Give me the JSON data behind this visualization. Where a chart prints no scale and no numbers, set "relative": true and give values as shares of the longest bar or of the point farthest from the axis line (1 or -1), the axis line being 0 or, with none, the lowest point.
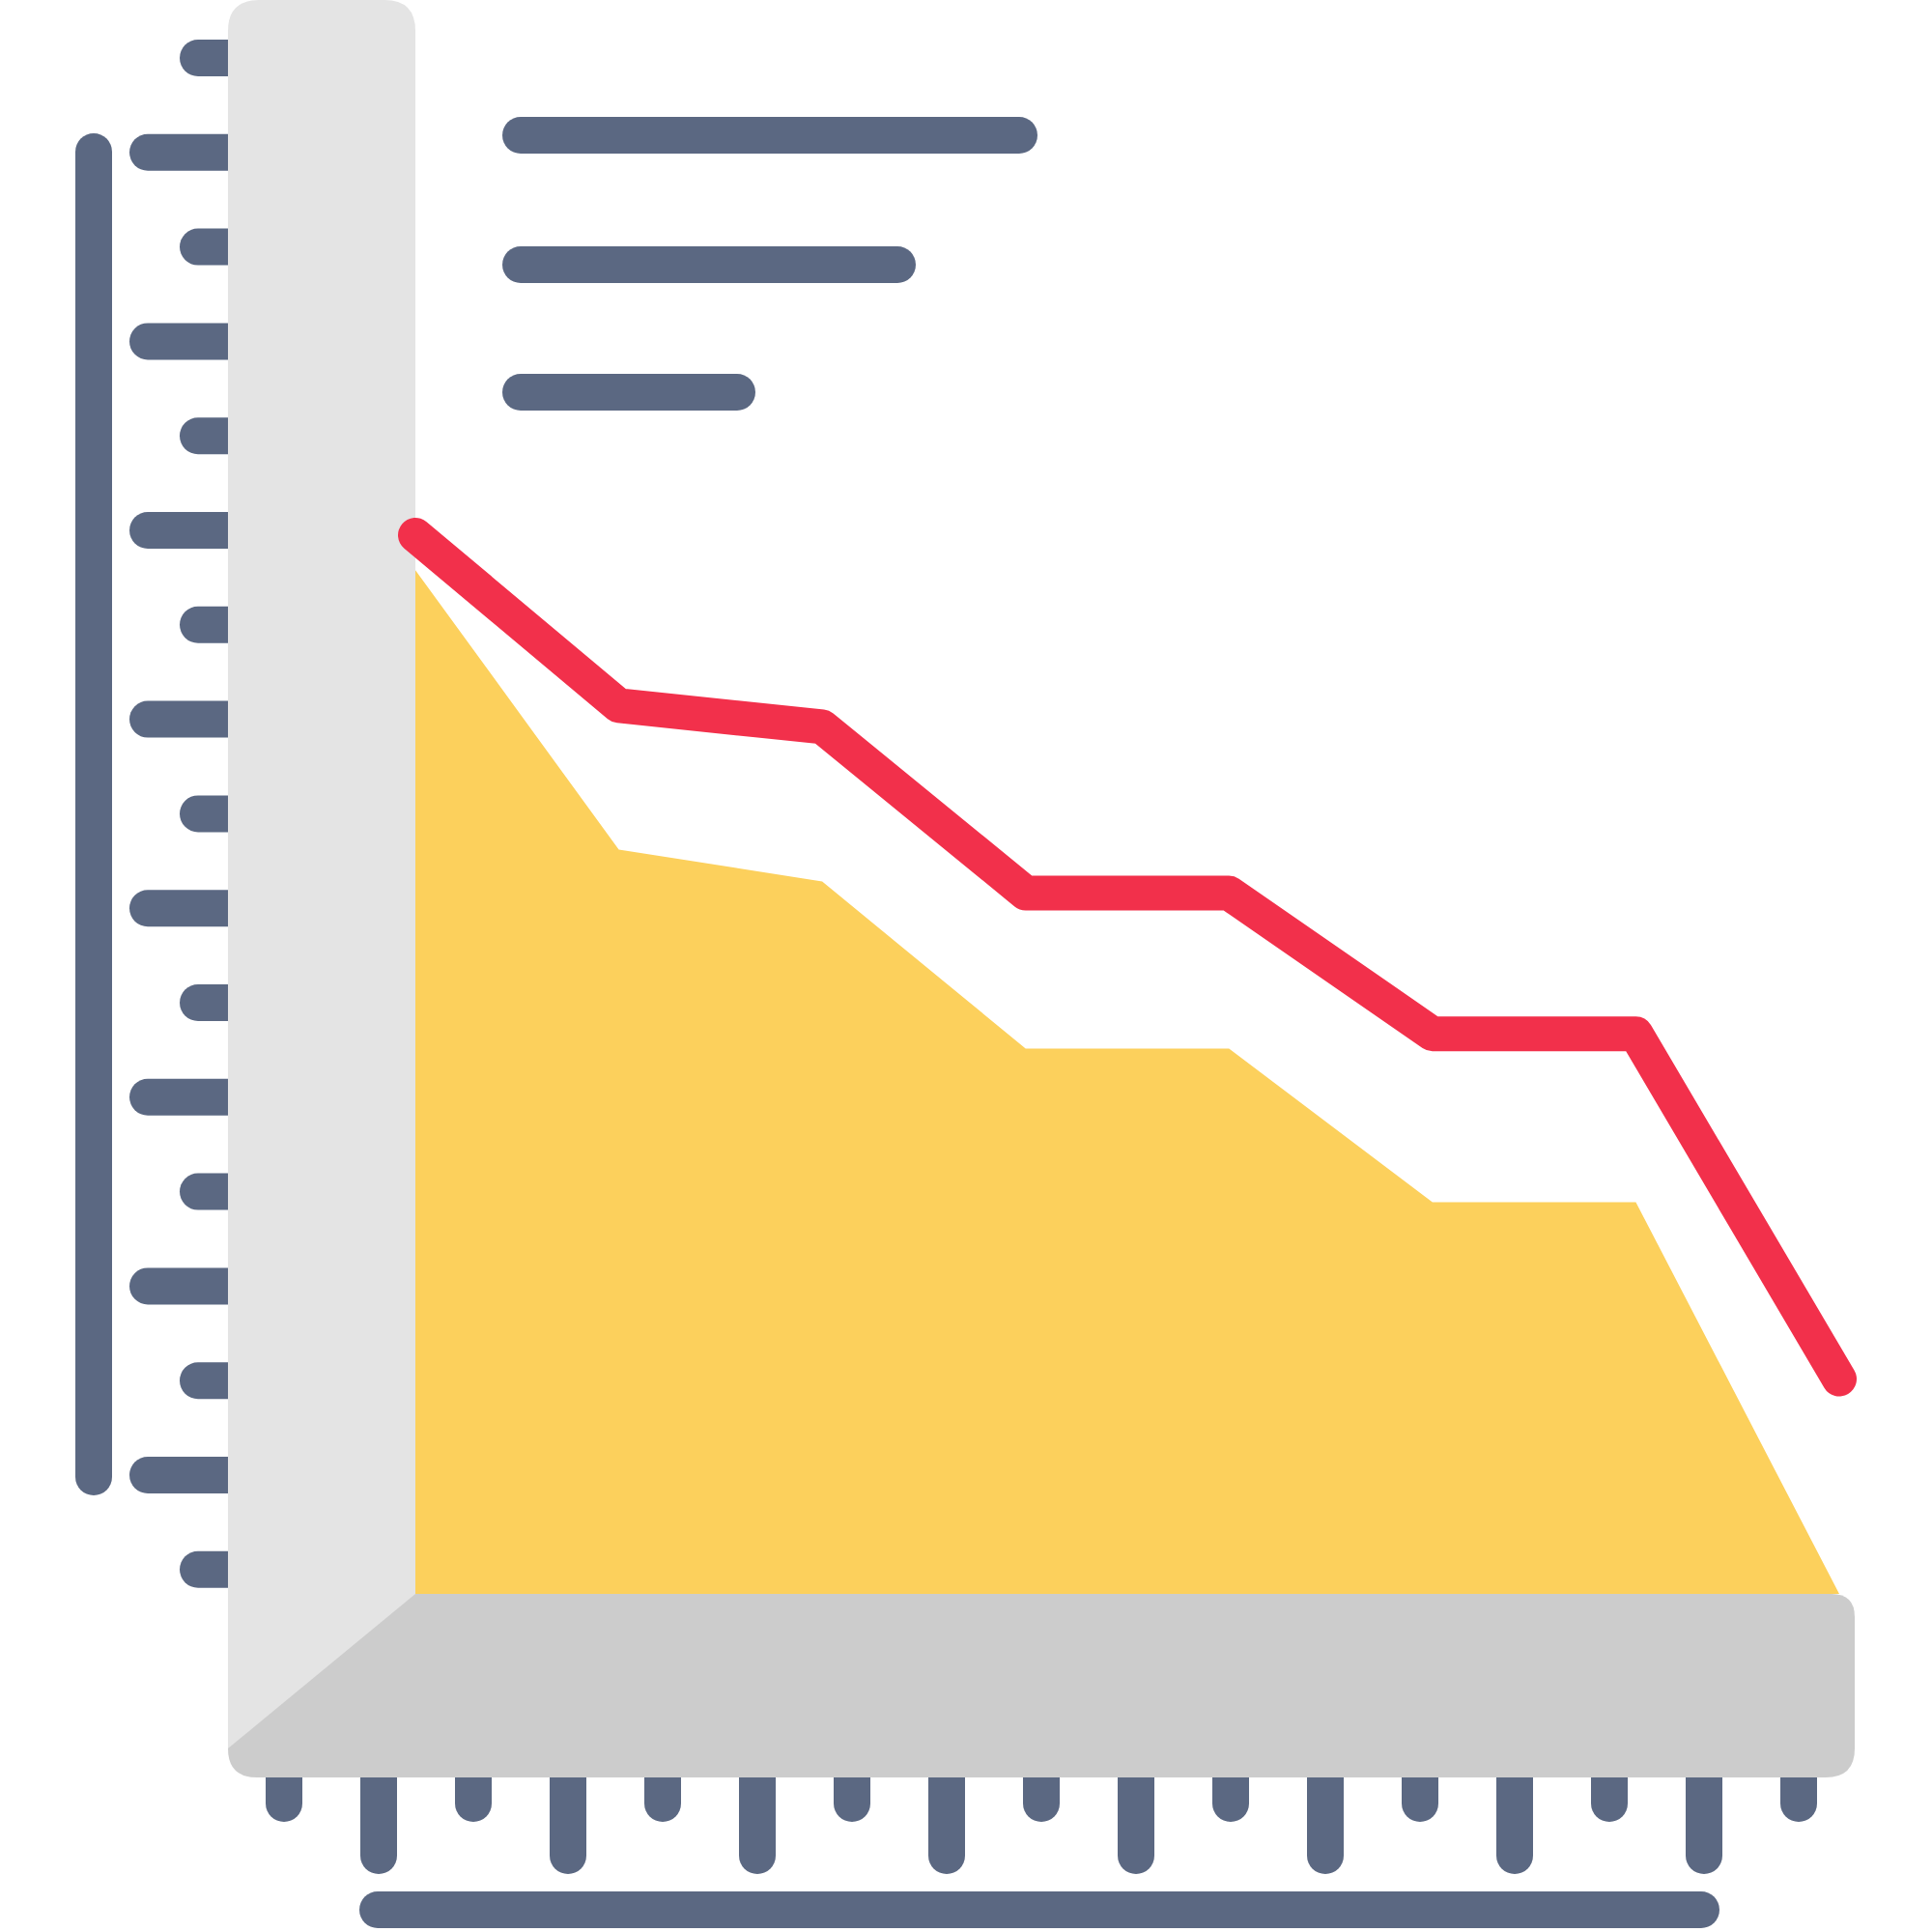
{
  "chart_data": {
    "type": "area",
    "relative": true,
    "categories": [
      null,
      null,
      null,
      null,
      null,
      null,
      null,
      null
    ],
    "series": [
      {
        "color": "#fcd05c",
        "values": [
          0.967,
          0.703,
          0.673,
          0.515,
          0.515,
          0.37,
          0.37,
          0
        ]
      },
      {
        "type": "line",
        "color": "#f2304b",
        "values": [
          1,
          0.839,
          0.819,
          0.662,
          0.662,
          0.529,
          0.529,
          0.203
        ]
      }
    ]
  }
}
